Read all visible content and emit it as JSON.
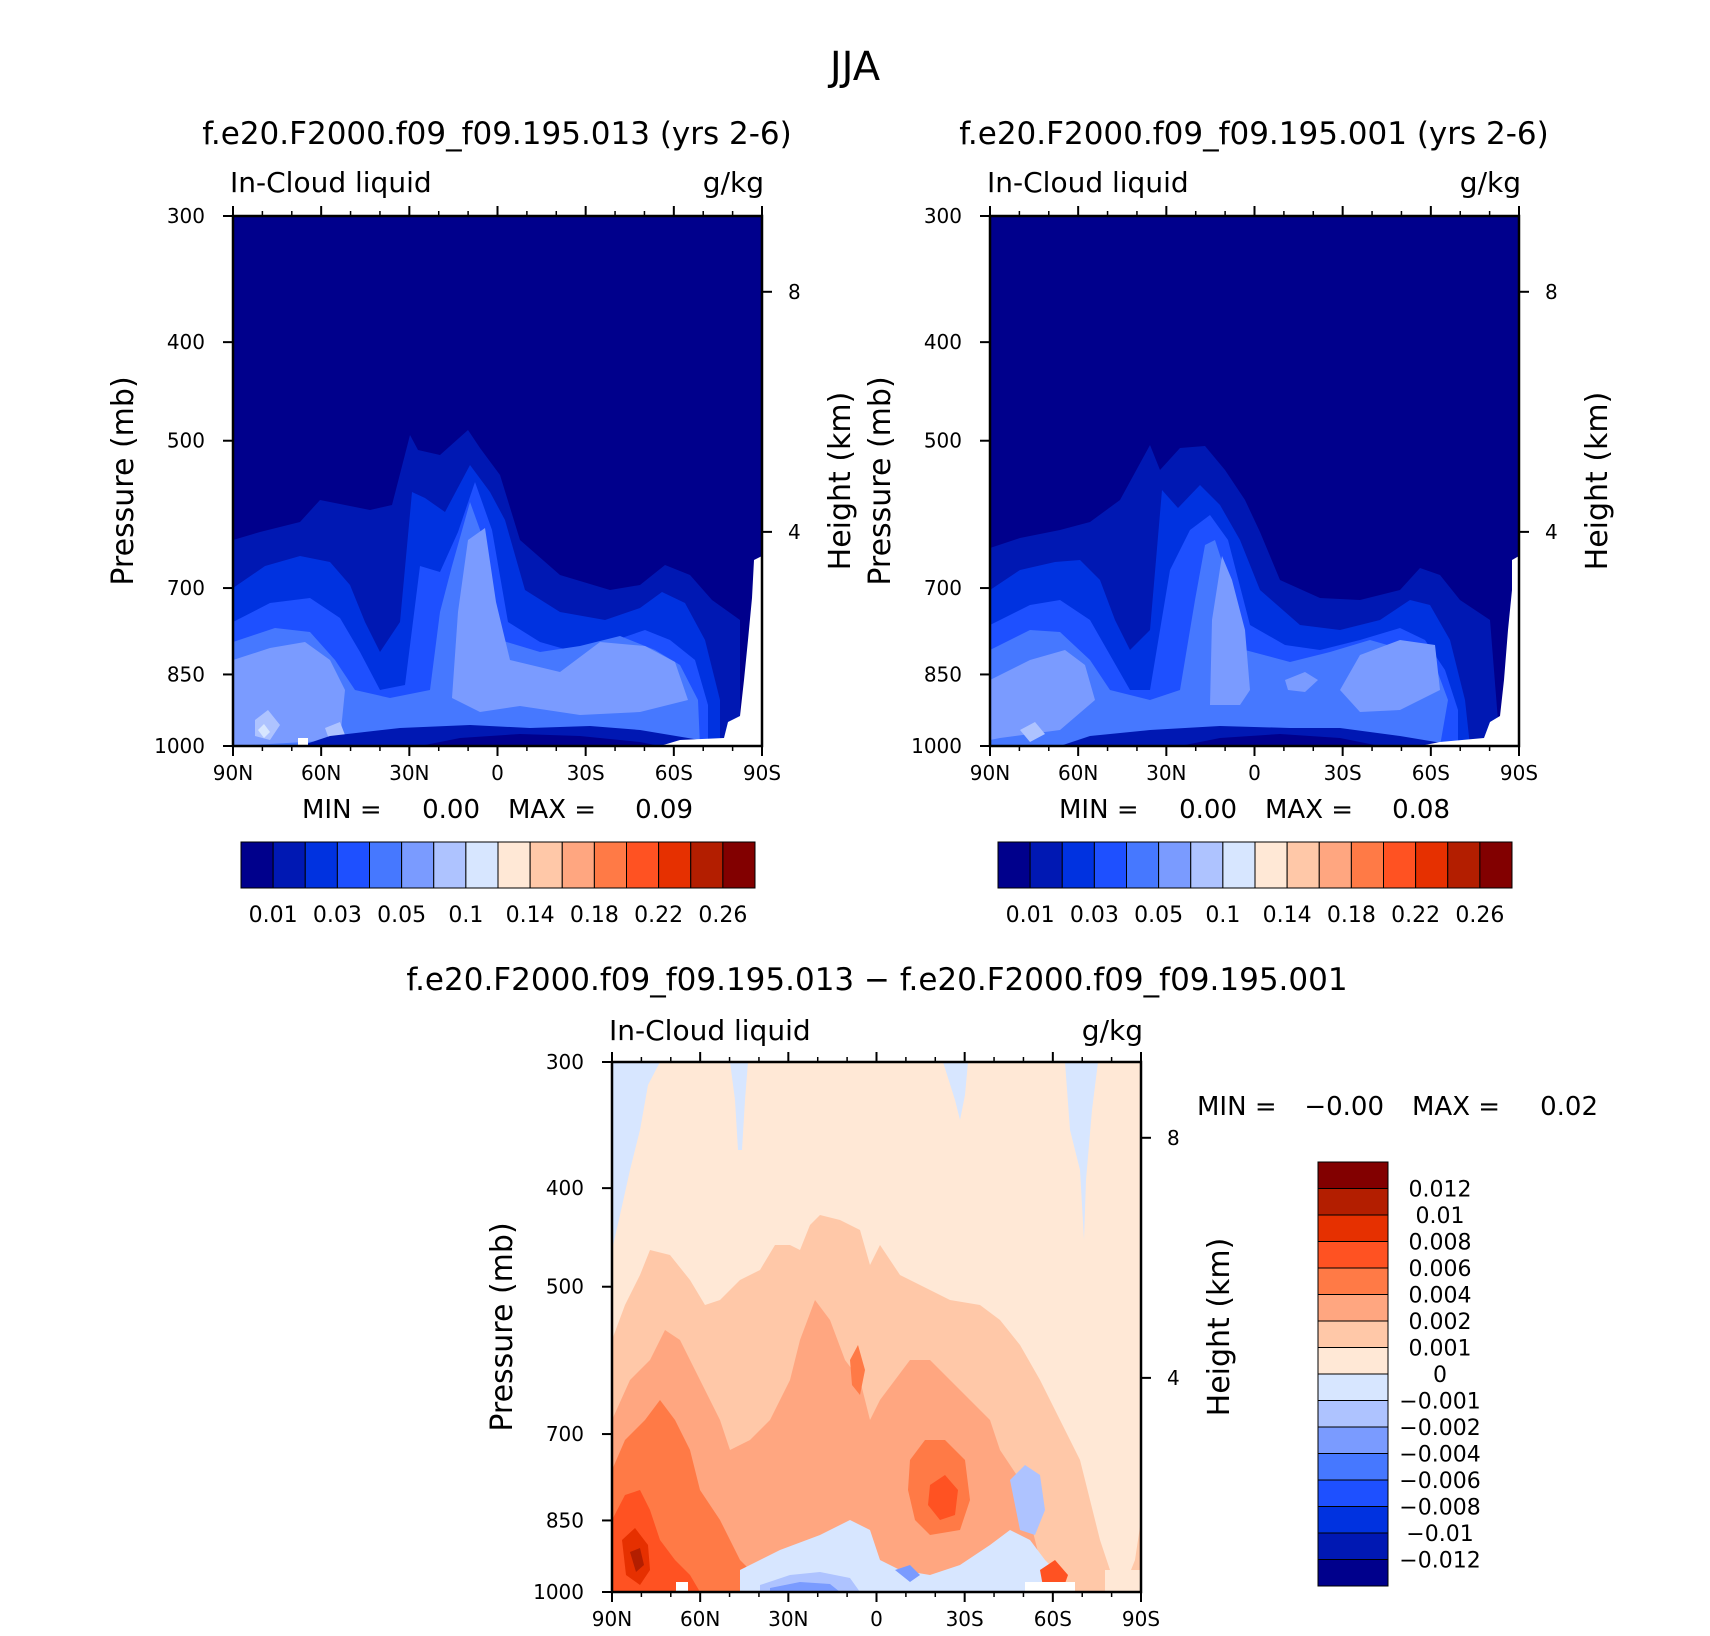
{
  "title": "JJA",
  "colors": {
    "blue_scale": [
      "#00008c",
      "#0018b3",
      "#0032e0",
      "#1e50ff",
      "#4678ff",
      "#7a9bff",
      "#aec3ff",
      "#d7e6ff"
    ],
    "red_scale": [
      "#ffe8d6",
      "#ffc8a8",
      "#ffa680",
      "#ff7a46",
      "#ff5222",
      "#e63000",
      "#b31e00",
      "#820000"
    ],
    "diff_scale": [
      "#00008c",
      "#0018b3",
      "#0032e0",
      "#1e50ff",
      "#4678ff",
      "#7a9bff",
      "#aec3ff",
      "#d7e6ff",
      "#ffe8d6",
      "#ffc8a8",
      "#ffa680",
      "#ff7a46",
      "#ff5222",
      "#e63000",
      "#b31e00",
      "#820000"
    ]
  },
  "chart_data": [
    {
      "type": "heatmap",
      "panel": "case",
      "title": "f.e20.F2000.f09_f09.195.013 (yrs 2-6)",
      "left_label": "In-Cloud liquid",
      "units": "g/kg",
      "ylabel": "Pressure (mb)",
      "y2label": "Height (km)",
      "x_ticks": [
        "90N",
        "60N",
        "30N",
        "0",
        "30S",
        "60S",
        "90S"
      ],
      "y_ticks": [
        "300",
        "400",
        "500",
        "700",
        "850",
        "1000"
      ],
      "y2_ticks": [
        "8",
        "4"
      ],
      "stats": {
        "min_label": "MIN =",
        "min": "0.00",
        "max_label": "MAX =",
        "max": "0.09"
      },
      "colorbar_labels": [
        "0.01",
        "0.03",
        "0.05",
        "0.1",
        "0.14",
        "0.18",
        "0.22",
        "0.26"
      ],
      "lat": [
        90,
        80,
        70,
        60,
        50,
        40,
        30,
        20,
        10,
        0,
        -10,
        -20,
        -30,
        -40,
        -50,
        -60,
        -70,
        -80,
        -90
      ],
      "pressure": [
        300,
        400,
        500,
        700,
        850,
        1000
      ],
      "field_max": 0.09
    },
    {
      "type": "heatmap",
      "panel": "control",
      "title": "f.e20.F2000.f09_f09.195.001 (yrs 2-6)",
      "left_label": "In-Cloud liquid",
      "units": "g/kg",
      "ylabel": "Pressure (mb)",
      "y2label": "Height (km)",
      "x_ticks": [
        "90N",
        "60N",
        "30N",
        "0",
        "30S",
        "60S",
        "90S"
      ],
      "y_ticks": [
        "300",
        "400",
        "500",
        "700",
        "850",
        "1000"
      ],
      "y2_ticks": [
        "8",
        "4"
      ],
      "stats": {
        "min_label": "MIN =",
        "min": "0.00",
        "max_label": "MAX =",
        "max": "0.08"
      },
      "colorbar_labels": [
        "0.01",
        "0.03",
        "0.05",
        "0.1",
        "0.14",
        "0.18",
        "0.22",
        "0.26"
      ],
      "lat": [
        90,
        80,
        70,
        60,
        50,
        40,
        30,
        20,
        10,
        0,
        -10,
        -20,
        -30,
        -40,
        -50,
        -60,
        -70,
        -80,
        -90
      ],
      "pressure": [
        300,
        400,
        500,
        700,
        850,
        1000
      ],
      "field_max": 0.08
    },
    {
      "type": "heatmap",
      "panel": "difference",
      "title": "f.e20.F2000.f09_f09.195.013 − f.e20.F2000.f09_f09.195.001",
      "left_label": "In-Cloud liquid",
      "units": "g/kg",
      "ylabel": "Pressure (mb)",
      "y2label": "Height (km)",
      "x_ticks": [
        "90N",
        "60N",
        "30N",
        "0",
        "30S",
        "60S",
        "90S"
      ],
      "y_ticks": [
        "300",
        "400",
        "500",
        "700",
        "850",
        "1000"
      ],
      "y2_ticks": [
        "8",
        "4"
      ],
      "stats": {
        "min_label": "MIN =",
        "min": "−0.00",
        "max_label": "MAX =",
        "max": "0.02"
      },
      "colorbar_labels": [
        "0.012",
        "0.01",
        "0.008",
        "0.006",
        "0.004",
        "0.002",
        "0.001",
        "0",
        "−0.001",
        "−0.002",
        "−0.004",
        "−0.006",
        "−0.008",
        "−0.01",
        "−0.012"
      ],
      "lat": [
        90,
        80,
        70,
        60,
        50,
        40,
        30,
        20,
        10,
        0,
        -10,
        -20,
        -30,
        -40,
        -50,
        -60,
        -70,
        -80,
        -90
      ],
      "pressure": [
        300,
        400,
        500,
        700,
        850,
        1000
      ],
      "field_max": 0.02
    }
  ]
}
